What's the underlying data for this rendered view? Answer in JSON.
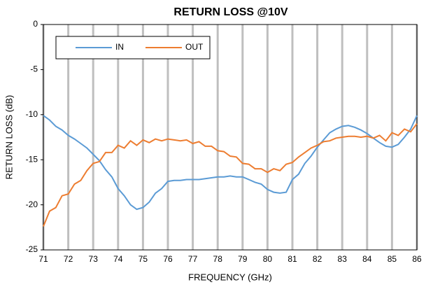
{
  "chart_data": {
    "type": "line",
    "title": "RETURN LOSS @10V",
    "x_label": "FREQUENCY (GHz)",
    "y_label": "RETURN LOSS (dB)",
    "x": [
      71,
      71.25,
      71.5,
      71.75,
      72,
      72.25,
      72.5,
      72.75,
      73,
      73.25,
      73.5,
      73.75,
      74,
      74.25,
      74.5,
      74.75,
      75,
      75.25,
      75.5,
      75.75,
      76,
      76.25,
      76.5,
      76.75,
      77,
      77.25,
      77.5,
      77.75,
      78,
      78.25,
      78.5,
      78.75,
      79,
      79.25,
      79.5,
      79.75,
      80,
      80.25,
      80.5,
      80.75,
      81,
      81.25,
      81.5,
      81.75,
      82,
      82.25,
      82.5,
      82.75,
      83,
      83.25,
      83.5,
      83.75,
      84,
      84.25,
      84.5,
      84.75,
      85,
      85.25,
      85.5,
      85.75,
      86
    ],
    "series": [
      {
        "name": "IN",
        "color": "#5b9bd5",
        "values": [
          -10.1,
          -10.6,
          -11.3,
          -11.7,
          -12.3,
          -12.7,
          -13.2,
          -13.7,
          -14.4,
          -15.1,
          -16.1,
          -16.9,
          -18.2,
          -19.0,
          -20.0,
          -20.5,
          -20.3,
          -19.7,
          -18.7,
          -18.2,
          -17.4,
          -17.3,
          -17.3,
          -17.2,
          -17.2,
          -17.2,
          -17.1,
          -17.0,
          -16.9,
          -16.9,
          -16.8,
          -16.9,
          -16.9,
          -17.2,
          -17.5,
          -17.7,
          -18.3,
          -18.6,
          -18.7,
          -18.6,
          -17.2,
          -16.6,
          -15.4,
          -14.6,
          -13.6,
          -12.8,
          -12.0,
          -11.6,
          -11.3,
          -11.2,
          -11.4,
          -11.7,
          -12.1,
          -12.6,
          -13.1,
          -13.5,
          -13.6,
          -13.3,
          -12.5,
          -11.6,
          -10.1
        ]
      },
      {
        "name": "OUT",
        "color": "#ed7d31",
        "values": [
          -22.4,
          -20.7,
          -20.3,
          -19.0,
          -18.8,
          -17.7,
          -17.3,
          -16.2,
          -15.4,
          -15.2,
          -14.2,
          -14.2,
          -13.4,
          -13.7,
          -12.9,
          -13.4,
          -12.8,
          -13.1,
          -12.7,
          -12.9,
          -12.7,
          -12.8,
          -12.9,
          -12.8,
          -13.2,
          -13.0,
          -13.5,
          -13.5,
          -14.0,
          -14.1,
          -14.6,
          -14.7,
          -15.4,
          -15.5,
          -16.0,
          -16.0,
          -16.4,
          -16.0,
          -16.2,
          -15.5,
          -15.3,
          -14.7,
          -14.2,
          -13.7,
          -13.4,
          -13.0,
          -12.9,
          -12.6,
          -12.5,
          -12.4,
          -12.4,
          -12.5,
          -12.4,
          -12.6,
          -12.3,
          -12.9,
          -12.0,
          -12.3,
          -11.6,
          -11.9,
          -11.0
        ]
      }
    ],
    "xlim": [
      71,
      86
    ],
    "xticks": [
      71,
      72,
      73,
      74,
      75,
      76,
      77,
      78,
      79,
      80,
      81,
      82,
      83,
      84,
      85,
      86
    ],
    "ylim": [
      -25,
      0
    ],
    "yticks": [
      0,
      -5,
      -10,
      -15,
      -20,
      -25
    ],
    "grid": true,
    "grid_color": "#bfbfbf",
    "legend": "upper left"
  }
}
